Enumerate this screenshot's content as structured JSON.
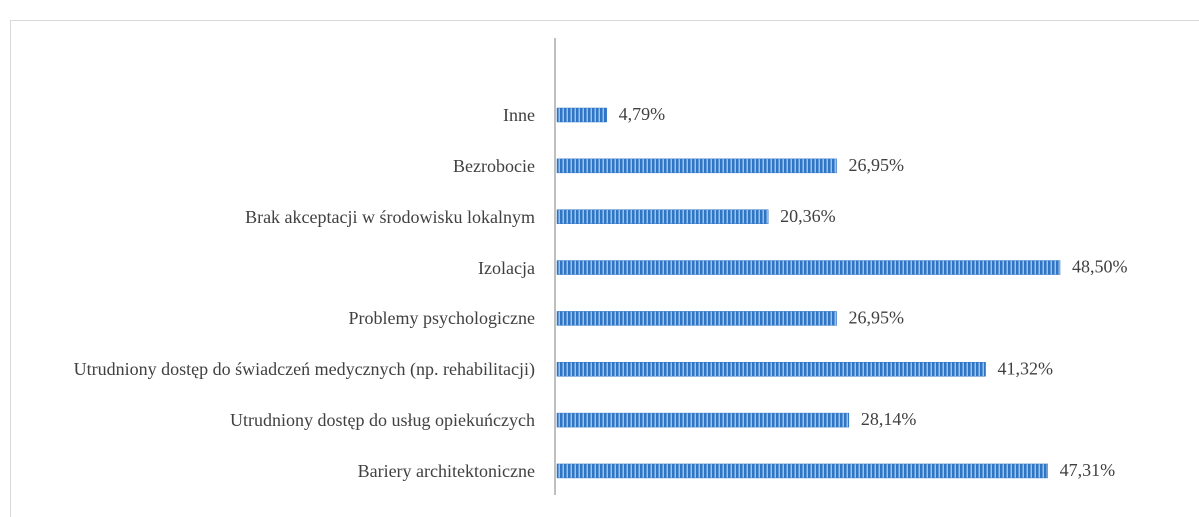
{
  "chart_data": {
    "type": "bar",
    "orientation": "horizontal",
    "categories": [
      "Inne",
      "Bezrobocie",
      "Brak akceptacji w środowisku lokalnym",
      "Izolacja",
      "Problemy psychologiczne",
      "Utrudniony dostęp do świadczeń medycznych (np. rehabilitacji)",
      "Utrudniony dostęp do usług opiekuńczych",
      "Bariery architektoniczne"
    ],
    "values": [
      4.79,
      26.95,
      20.36,
      48.5,
      26.95,
      41.32,
      28.14,
      47.31
    ],
    "value_labels": [
      "4,79%",
      "26,95%",
      "20,36%",
      "48,50%",
      "26,95%",
      "41,32%",
      "28,14%",
      "47,31%"
    ],
    "color": "#2e75c6"
  }
}
